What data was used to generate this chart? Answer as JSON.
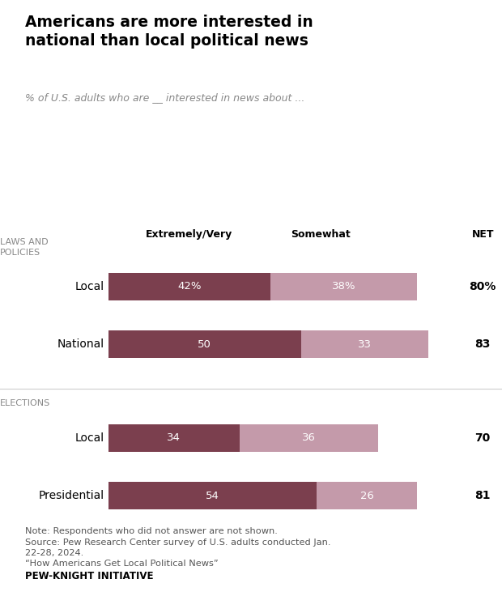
{
  "title": "Americans are more interested in\nnational than local political news",
  "subtitle": "% of U.S. adults who are __ interested in news about ...",
  "sections": [
    {
      "label": "LAWS AND\nPOLICIES",
      "rows": [
        {
          "name": "Local",
          "extreme_very": 42,
          "somewhat": 38,
          "net": "80%",
          "net_bold": true,
          "label1": "42%",
          "label2": "38%"
        },
        {
          "name": "National",
          "extreme_very": 50,
          "somewhat": 33,
          "net": "83",
          "net_bold": true,
          "label1": "50",
          "label2": "33"
        }
      ]
    },
    {
      "label": "ELECTIONS",
      "rows": [
        {
          "name": "Local",
          "extreme_very": 34,
          "somewhat": 36,
          "net": "70",
          "net_bold": true,
          "label1": "34",
          "label2": "36"
        },
        {
          "name": "Presidential",
          "extreme_very": 54,
          "somewhat": 26,
          "net": "81",
          "net_bold": true,
          "label1": "54",
          "label2": "26"
        }
      ]
    }
  ],
  "color_dark": "#7b3f4e",
  "color_light": "#c49aaa",
  "header_extremely": "Extremely/Very",
  "header_somewhat": "Somewhat",
  "header_net": "NET",
  "note_text": "Note: Respondents who did not answer are not shown.\nSource: Pew Research Center survey of U.S. adults conducted Jan.\n22-28, 2024.\n“How Americans Get Local Political News”",
  "footer": "PEW-KNIGHT INITIATIVE",
  "background_color": "#ffffff",
  "bar_height": 0.38,
  "bar_scale": 90
}
